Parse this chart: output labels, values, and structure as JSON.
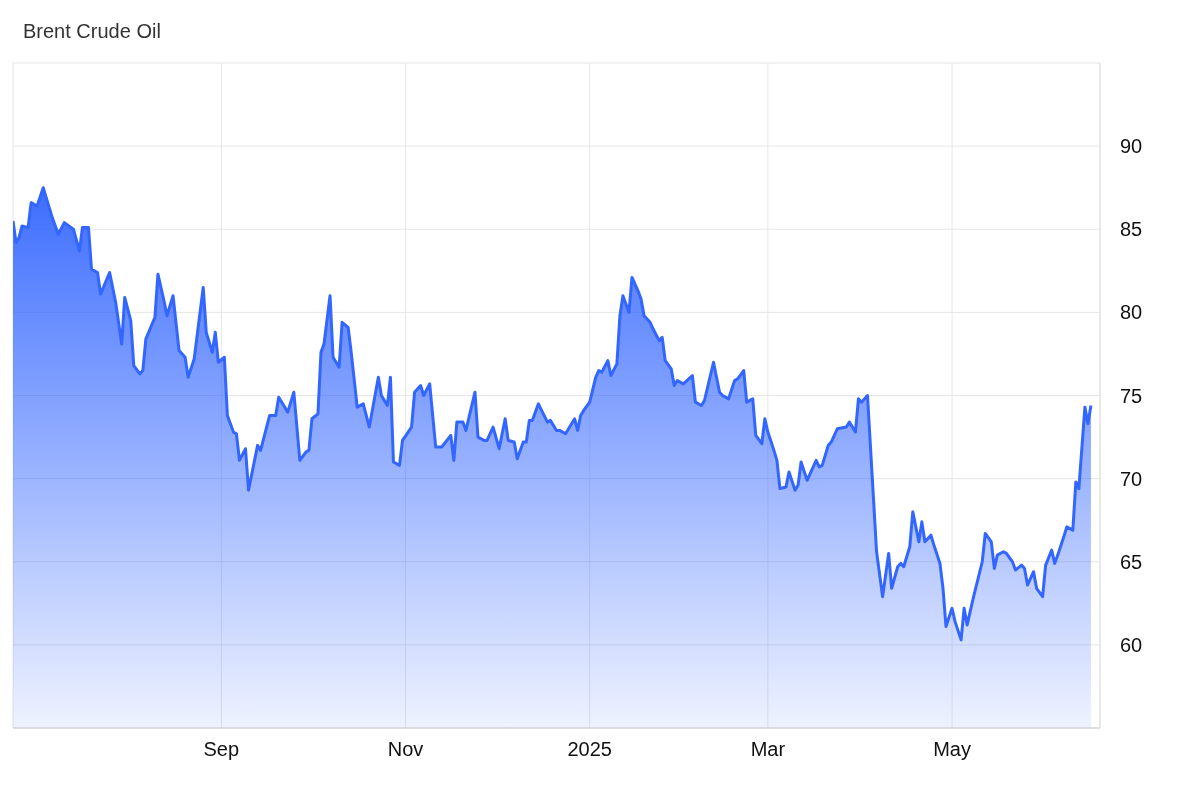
{
  "chart_data": {
    "type": "area",
    "title": "Brent Crude Oil",
    "x": [
      "2024-06-24",
      "2024-06-25",
      "2024-06-26",
      "2024-06-27",
      "2024-06-29",
      "2024-06-30",
      "2024-07-02",
      "2024-07-04",
      "2024-07-07",
      "2024-07-09",
      "2024-07-11",
      "2024-07-14",
      "2024-07-16",
      "2024-07-17",
      "2024-07-19",
      "2024-07-20",
      "2024-07-22",
      "2024-07-23",
      "2024-07-26",
      "2024-07-28",
      "2024-07-30",
      "2024-07-31",
      "2024-08-02",
      "2024-08-03",
      "2024-08-05",
      "2024-08-06",
      "2024-08-07",
      "2024-08-10",
      "2024-08-11",
      "2024-08-13",
      "2024-08-14",
      "2024-08-16",
      "2024-08-18",
      "2024-08-20",
      "2024-08-21",
      "2024-08-23",
      "2024-08-26",
      "2024-08-27",
      "2024-08-29",
      "2024-08-30",
      "2024-08-31",
      "2024-09-02",
      "2024-09-03",
      "2024-09-05",
      "2024-09-06",
      "2024-09-07",
      "2024-09-09",
      "2024-09-10",
      "2024-09-13",
      "2024-09-14",
      "2024-09-17",
      "2024-09-19",
      "2024-09-20",
      "2024-09-23",
      "2024-09-25",
      "2024-09-27",
      "2024-09-29",
      "2024-09-30",
      "2024-10-01",
      "2024-10-03",
      "2024-10-04",
      "2024-10-05",
      "2024-10-07",
      "2024-10-08",
      "2024-10-10",
      "2024-10-11",
      "2024-10-13",
      "2024-10-14",
      "2024-10-16",
      "2024-10-18",
      "2024-10-20",
      "2024-10-23",
      "2024-10-24",
      "2024-10-26",
      "2024-10-27",
      "2024-10-28",
      "2024-10-30",
      "2024-10-31",
      "2024-11-03",
      "2024-11-04",
      "2024-11-06",
      "2024-11-07",
      "2024-11-09",
      "2024-11-11",
      "2024-11-13",
      "2024-11-16",
      "2024-11-17",
      "2024-11-18",
      "2024-11-20",
      "2024-11-21",
      "2024-11-24",
      "2024-11-25",
      "2024-11-27",
      "2024-11-28",
      "2024-11-30",
      "2024-12-02",
      "2024-12-04",
      "2024-12-05",
      "2024-12-07",
      "2024-12-08",
      "2024-12-10",
      "2024-12-11",
      "2024-12-12",
      "2024-12-13",
      "2024-12-15",
      "2024-12-18",
      "2024-12-19",
      "2024-12-21",
      "2024-12-22",
      "2024-12-24",
      "2024-12-27",
      "2024-12-28",
      "2024-12-29",
      "2024-12-30",
      "2025-01-01",
      "2025-01-03",
      "2025-01-04",
      "2025-01-05",
      "2025-01-07",
      "2025-01-08",
      "2025-01-10",
      "2025-01-11",
      "2025-01-12",
      "2025-01-14",
      "2025-01-15",
      "2025-01-17",
      "2025-01-18",
      "2025-01-19",
      "2025-01-21",
      "2025-01-22",
      "2025-01-24",
      "2025-01-25",
      "2025-01-26",
      "2025-01-28",
      "2025-01-29",
      "2025-01-30",
      "2025-02-01",
      "2025-02-04",
      "2025-02-05",
      "2025-02-07",
      "2025-02-08",
      "2025-02-11",
      "2025-02-13",
      "2025-02-14",
      "2025-02-16",
      "2025-02-18",
      "2025-02-19",
      "2025-02-21",
      "2025-02-22",
      "2025-02-24",
      "2025-02-25",
      "2025-02-27",
      "2025-02-28",
      "2025-03-01",
      "2025-03-03",
      "2025-03-04",
      "2025-03-05",
      "2025-03-07",
      "2025-03-08",
      "2025-03-10",
      "2025-03-11",
      "2025-03-12",
      "2025-03-14",
      "2025-03-17",
      "2025-03-18",
      "2025-03-19",
      "2025-03-21",
      "2025-03-22",
      "2025-03-24",
      "2025-03-27",
      "2025-03-28",
      "2025-03-30",
      "2025-03-31",
      "2025-04-01",
      "2025-04-03",
      "2025-04-06",
      "2025-04-08",
      "2025-04-10",
      "2025-04-11",
      "2025-04-13",
      "2025-04-14",
      "2025-04-15",
      "2025-04-17",
      "2025-04-18",
      "2025-04-20",
      "2025-04-21",
      "2025-04-22",
      "2025-04-24",
      "2025-04-25",
      "2025-04-27",
      "2025-04-28",
      "2025-04-29",
      "2025-05-01",
      "2025-05-02",
      "2025-05-04",
      "2025-05-05",
      "2025-05-06",
      "2025-05-08",
      "2025-05-11",
      "2025-05-12",
      "2025-05-14",
      "2025-05-15",
      "2025-05-16",
      "2025-05-18",
      "2025-05-19",
      "2025-05-21",
      "2025-05-22",
      "2025-05-24",
      "2025-05-25",
      "2025-05-26",
      "2025-05-28",
      "2025-05-29",
      "2025-05-31",
      "2025-06-01",
      "2025-06-03",
      "2025-06-04",
      "2025-06-05",
      "2025-06-07",
      "2025-06-08",
      "2025-06-10",
      "2025-06-11",
      "2025-06-12",
      "2025-06-14",
      "2025-06-15",
      "2025-06-16"
    ],
    "series": [
      {
        "color": "#3366ff",
        "values": [
          85.5,
          84.2,
          84.5,
          85.2,
          85.1,
          86.6,
          86.4,
          87.5,
          85.7,
          84.7,
          85.4,
          85.0,
          83.7,
          85.1,
          85.1,
          82.6,
          82.4,
          81.1,
          82.4,
          80.6,
          78.1,
          80.9,
          79.5,
          76.8,
          76.3,
          76.5,
          78.4,
          79.7,
          82.3,
          80.7,
          79.8,
          81.0,
          77.7,
          77.3,
          76.1,
          77.2,
          81.5,
          78.8,
          77.6,
          78.8,
          77.0,
          77.3,
          73.8,
          72.8,
          72.7,
          71.1,
          71.8,
          69.3,
          72.0,
          71.7,
          73.8,
          73.8,
          74.9,
          74.0,
          75.2,
          71.1,
          71.6,
          71.7,
          73.6,
          73.9,
          77.6,
          78.1,
          81.0,
          77.3,
          76.7,
          79.4,
          79.1,
          77.6,
          74.3,
          74.5,
          73.1,
          76.1,
          75.0,
          74.4,
          76.1,
          71.0,
          70.8,
          72.3,
          73.1,
          75.2,
          75.6,
          75.0,
          75.7,
          71.9,
          71.9,
          72.6,
          71.1,
          73.4,
          73.4,
          72.9,
          75.2,
          72.5,
          72.3,
          72.3,
          73.1,
          71.8,
          73.6,
          72.3,
          72.2,
          71.2,
          72.2,
          72.2,
          73.5,
          73.5,
          74.5,
          73.4,
          73.5,
          72.9,
          72.9,
          72.7,
          73.6,
          72.9,
          73.8,
          74.1,
          74.6,
          76.1,
          76.5,
          76.4,
          77.1,
          76.2,
          76.9,
          79.8,
          81.0,
          80.0,
          82.1,
          81.3,
          80.8,
          79.8,
          79.4,
          79.0,
          78.3,
          78.5,
          77.1,
          76.6,
          75.6,
          75.9,
          75.7,
          76.2,
          74.6,
          74.4,
          74.7,
          77.0,
          75.2,
          75.0,
          74.8,
          75.9,
          76.0,
          76.5,
          74.6,
          74.8,
          72.6,
          72.1,
          73.6,
          72.8,
          71.7,
          71.1,
          69.4,
          69.5,
          70.4,
          69.3,
          69.6,
          71.0,
          69.9,
          71.1,
          70.7,
          70.8,
          72.0,
          72.2,
          73.0,
          73.1,
          73.4,
          72.8,
          74.8,
          74.6,
          75.0,
          65.6,
          62.9,
          65.5,
          63.4,
          64.7,
          64.9,
          64.7,
          65.9,
          68.0,
          66.2,
          67.4,
          66.2,
          66.6,
          66.0,
          64.9,
          63.4,
          61.1,
          62.2,
          61.4,
          60.3,
          62.2,
          61.2,
          62.8,
          65.0,
          66.7,
          66.2,
          64.6,
          65.4,
          65.6,
          65.5,
          65.0,
          64.5,
          64.8,
          64.6,
          63.6,
          64.4,
          63.4,
          62.9,
          64.8,
          65.7,
          64.9,
          65.4,
          66.5,
          67.1,
          66.9,
          69.8,
          69.4,
          74.3,
          73.3,
          74.4
        ]
      }
    ],
    "xlim": [
      "2024-06-24",
      "2025-06-19"
    ],
    "xticks": [
      {
        "value": "2024-09-01",
        "label": "Sep"
      },
      {
        "value": "2024-11-01",
        "label": "Nov"
      },
      {
        "value": "2025-01-01",
        "label": "2025"
      },
      {
        "value": "2025-03-01",
        "label": "Mar"
      },
      {
        "value": "2025-05-01",
        "label": "May"
      }
    ],
    "ylim": [
      55,
      95
    ],
    "yticks": [
      60,
      65,
      70,
      75,
      80,
      85,
      90,
      {
        "value": 95,
        "label": null
      }
    ],
    "grid": true
  }
}
